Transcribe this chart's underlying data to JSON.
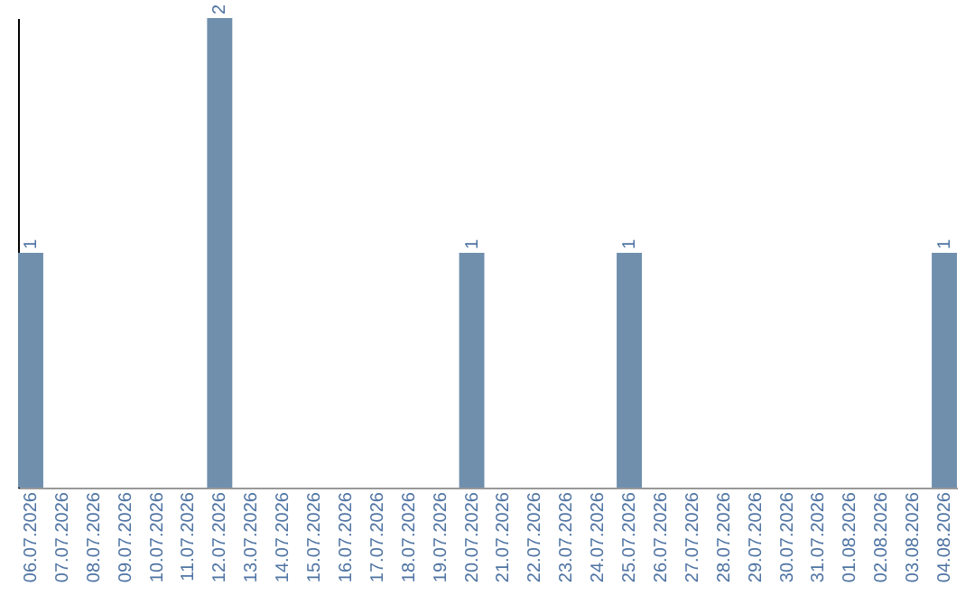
{
  "chart_data": {
    "type": "bar",
    "categories": [
      "06.07.2026",
      "07.07.2026",
      "08.07.2026",
      "09.07.2026",
      "10.07.2026",
      "11.07.2026",
      "12.07.2026",
      "13.07.2026",
      "14.07.2026",
      "15.07.2026",
      "16.07.2026",
      "17.07.2026",
      "18.07.2026",
      "19.07.2026",
      "20.07.2026",
      "21.07.2026",
      "22.07.2026",
      "23.07.2026",
      "24.07.2026",
      "25.07.2026",
      "26.07.2026",
      "27.07.2026",
      "28.07.2026",
      "29.07.2026",
      "30.07.2026",
      "31.07.2026",
      "01.08.2026",
      "02.08.2026",
      "03.08.2026",
      "04.08.2026"
    ],
    "values": [
      1,
      0,
      0,
      0,
      0,
      0,
      2,
      0,
      0,
      0,
      0,
      0,
      0,
      0,
      1,
      0,
      0,
      0,
      0,
      1,
      0,
      0,
      0,
      0,
      0,
      0,
      0,
      0,
      0,
      1
    ],
    "value_labels": [
      "1",
      null,
      null,
      null,
      null,
      null,
      "2",
      null,
      null,
      null,
      null,
      null,
      null,
      null,
      "1",
      null,
      null,
      null,
      null,
      "1",
      null,
      null,
      null,
      null,
      null,
      null,
      null,
      null,
      null,
      "1"
    ],
    "color": "#6f8fad",
    "tick_labels": "x",
    "grid": false
  }
}
